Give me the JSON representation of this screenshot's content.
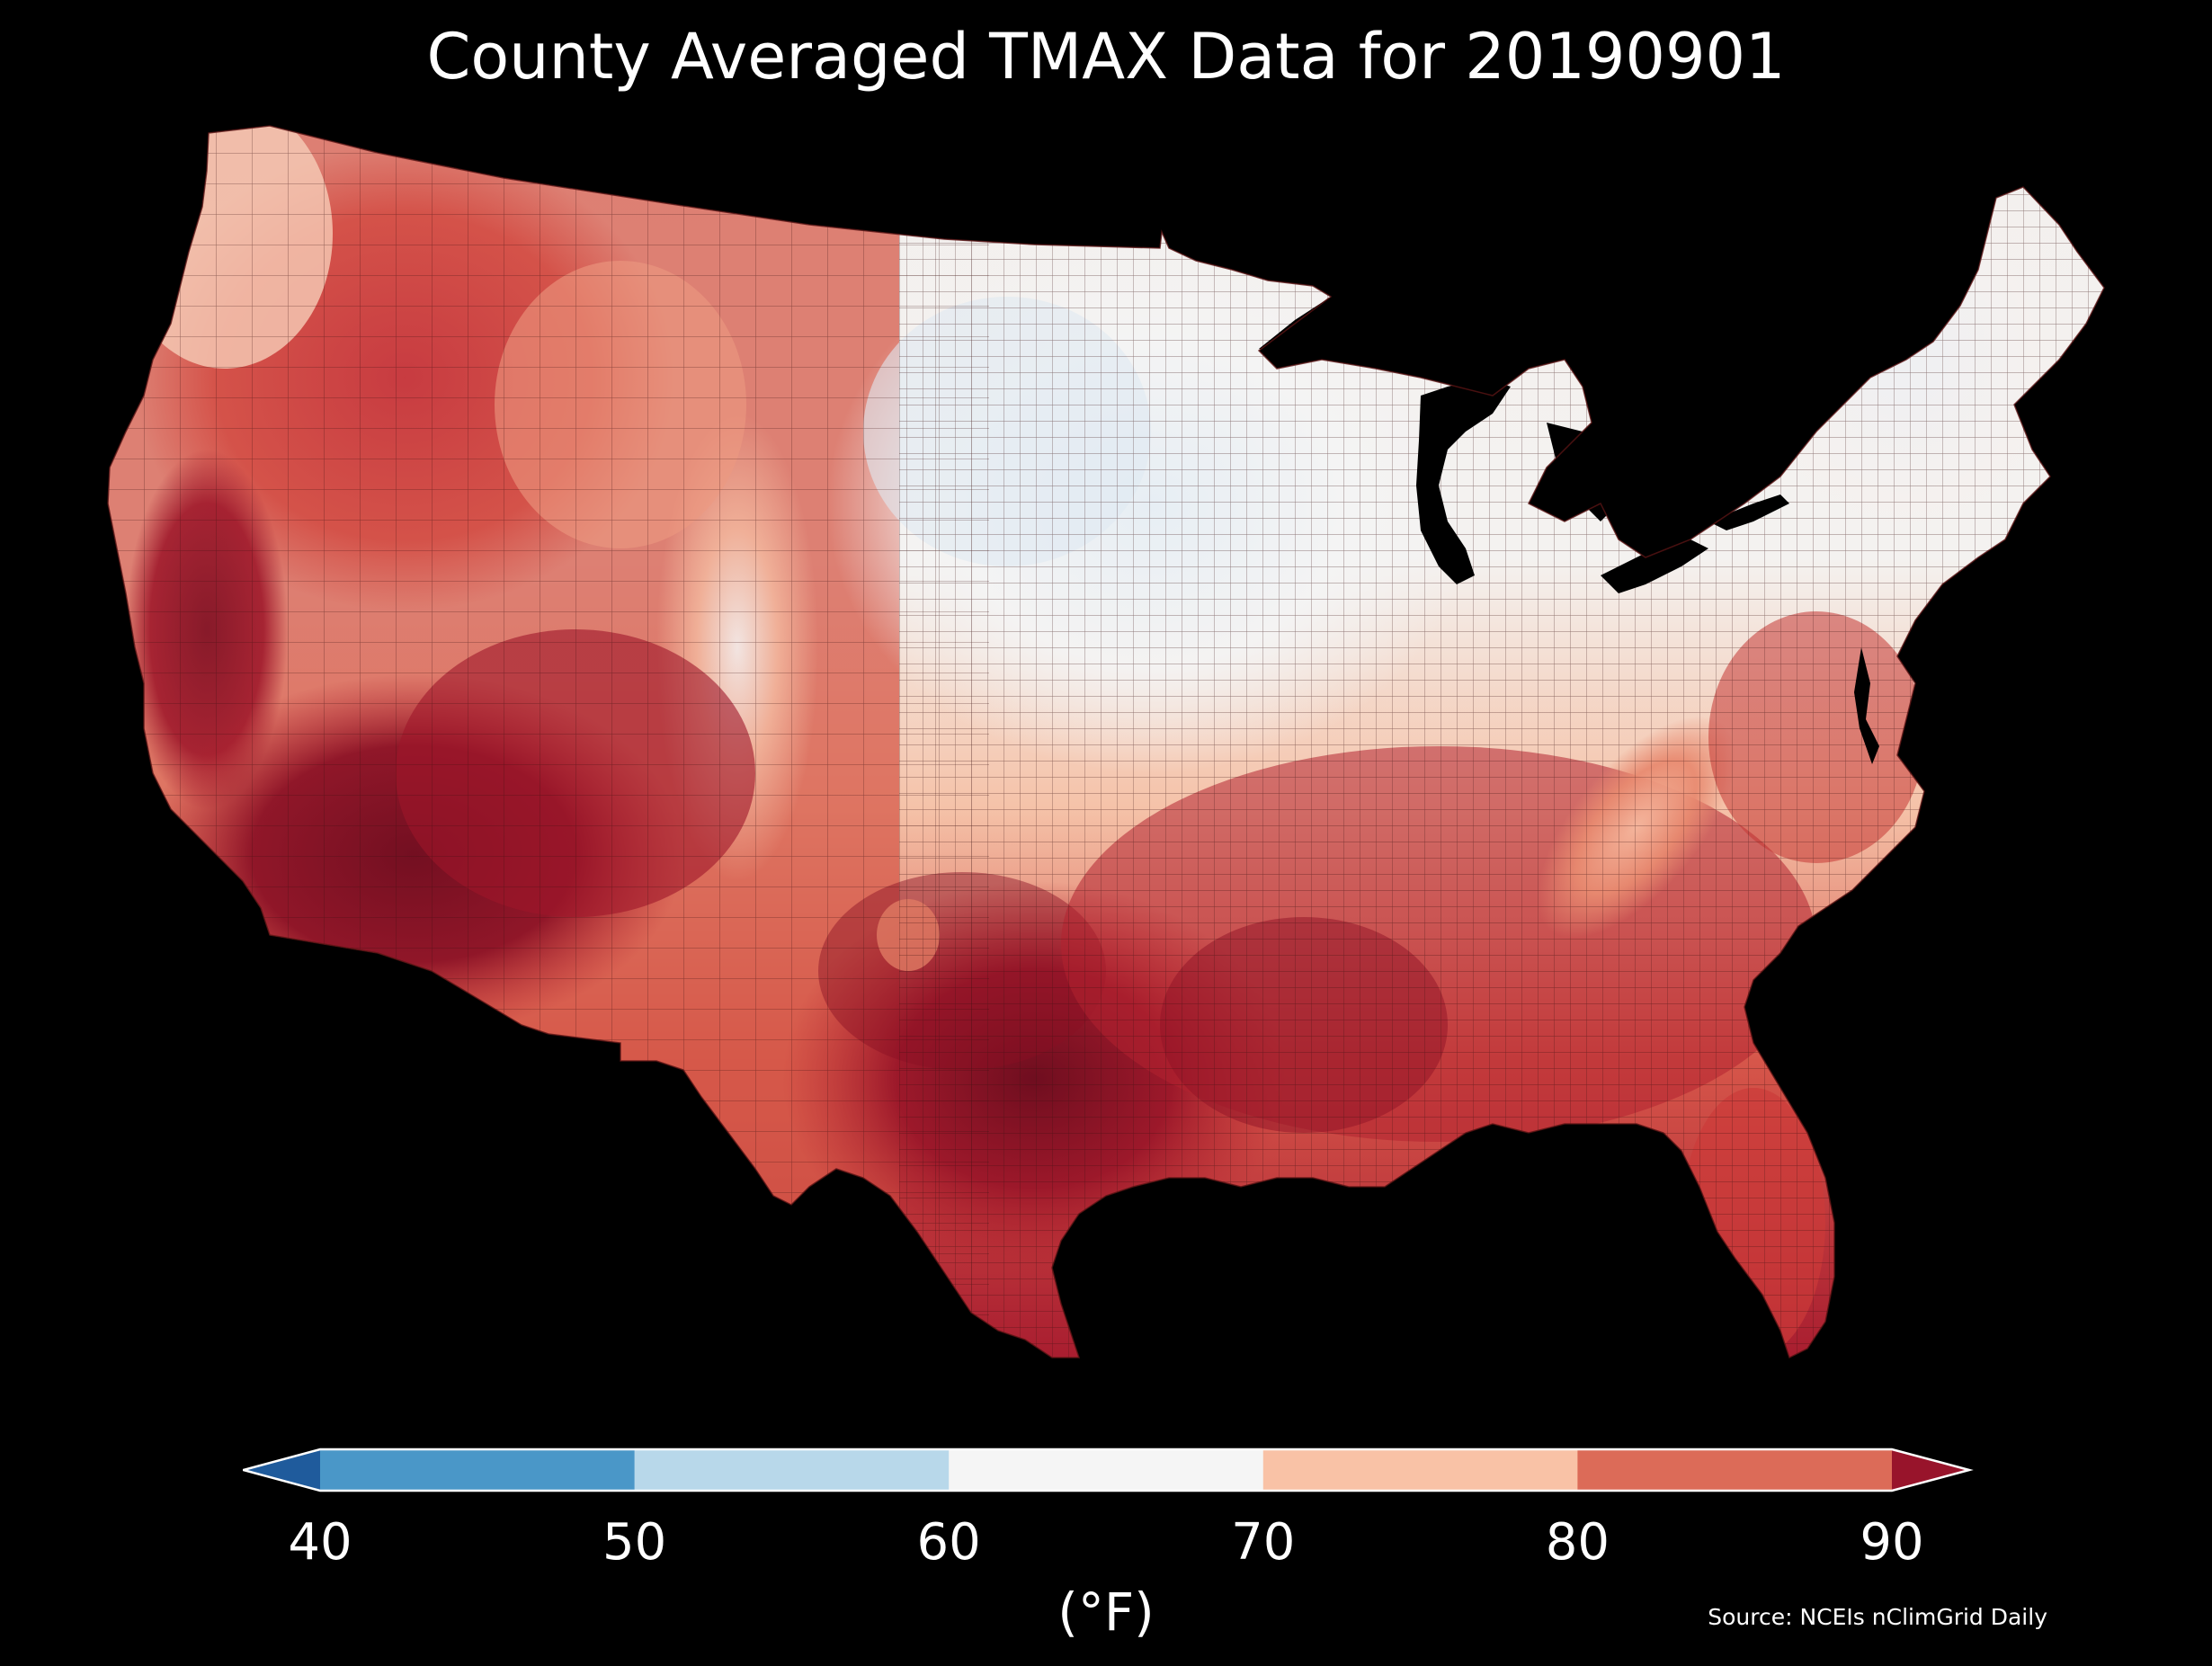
{
  "title": "County Averaged TMAX Data for 20190901",
  "colorbar": {
    "unit_label": "(°F)",
    "ticks": [
      "40",
      "50",
      "60",
      "70",
      "80",
      "90"
    ],
    "bins": [
      {
        "range": "<40",
        "color": "#1f5b9c"
      },
      {
        "range": "40-50",
        "color": "#4a97c8"
      },
      {
        "range": "50-60",
        "color": "#b8d8ea"
      },
      {
        "range": "60-70",
        "color": "#f5f5f5"
      },
      {
        "range": "70-80",
        "color": "#f9c2a6"
      },
      {
        "range": "80-90",
        "color": "#dc6b58"
      },
      {
        "range": ">90",
        "color": "#98142b"
      }
    ],
    "extend": "both"
  },
  "source": "Source: NCEIs nClimGrid Daily",
  "map": {
    "region": "Contiguous United States",
    "unit": "counties",
    "background": "#000000",
    "county_border_color": "#3a1010"
  }
}
